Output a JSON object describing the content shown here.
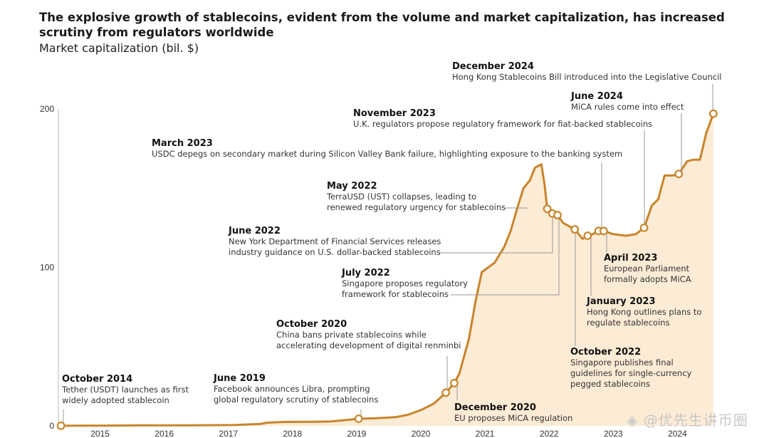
{
  "header": {
    "title": "The explosive growth of stablecoins, evident from the volume and market capitalization, has increased scrutiny from regulators worldwide",
    "subtitle": "Market capitalization (bil. $)"
  },
  "watermark": {
    "icon": "diamond-logo-icon",
    "text": "@优先生讲币圈"
  },
  "colors": {
    "line": "#c8842b",
    "fill": "#fcebd5",
    "marker_fill": "#ffffff",
    "leader": "#999999"
  },
  "chart_data": {
    "type": "area",
    "title": "The explosive growth of stablecoins, evident from the volume and market capitalization, has increased scrutiny from regulators worldwide",
    "ylabel": "Market capitalization (bil. $)",
    "xlabel": "",
    "xlim": [
      2014.75,
      2025.05
    ],
    "ylim": [
      0,
      200
    ],
    "yticks": [
      0,
      100,
      200
    ],
    "xticks": [
      2015,
      2016,
      2017,
      2018,
      2019,
      2020,
      2021,
      2022,
      2023,
      2024
    ],
    "grid": false,
    "series": [
      {
        "values_xy": [
          [
            2014.79,
            0.1
          ],
          [
            2015.5,
            0.2
          ],
          [
            2016.0,
            0.3
          ],
          [
            2016.5,
            0.3
          ],
          [
            2017.0,
            0.4
          ],
          [
            2017.5,
            0.6
          ],
          [
            2017.9,
            1.2
          ],
          [
            2018.0,
            2.0
          ],
          [
            2018.3,
            2.5
          ],
          [
            2018.7,
            2.6
          ],
          [
            2019.0,
            2.8
          ],
          [
            2019.43,
            4.5
          ],
          [
            2019.7,
            4.8
          ],
          [
            2020.0,
            5.5
          ],
          [
            2020.2,
            7.0
          ],
          [
            2020.4,
            10.0
          ],
          [
            2020.6,
            14.0
          ],
          [
            2020.79,
            21.0
          ],
          [
            2020.92,
            27.0
          ],
          [
            2021.0,
            33.0
          ],
          [
            2021.15,
            55.0
          ],
          [
            2021.25,
            78.0
          ],
          [
            2021.35,
            97.0
          ],
          [
            2021.45,
            100.0
          ],
          [
            2021.55,
            103.0
          ],
          [
            2021.7,
            113.0
          ],
          [
            2021.8,
            123.0
          ],
          [
            2021.9,
            137.0
          ],
          [
            2022.0,
            150.0
          ],
          [
            2022.1,
            155.0
          ],
          [
            2022.18,
            163.0
          ],
          [
            2022.28,
            165.0
          ],
          [
            2022.33,
            152.0
          ],
          [
            2022.37,
            137.0
          ],
          [
            2022.45,
            134.0
          ],
          [
            2022.53,
            133.0
          ],
          [
            2022.62,
            128.0
          ],
          [
            2022.8,
            124.0
          ],
          [
            2022.92,
            118.0
          ],
          [
            2023.0,
            120.0
          ],
          [
            2023.08,
            121.0
          ],
          [
            2023.17,
            123.0
          ],
          [
            2023.25,
            123.0
          ],
          [
            2023.4,
            121.0
          ],
          [
            2023.6,
            120.0
          ],
          [
            2023.75,
            121.0
          ],
          [
            2023.88,
            125.0
          ],
          [
            2024.0,
            139.0
          ],
          [
            2024.1,
            143.0
          ],
          [
            2024.2,
            158.0
          ],
          [
            2024.33,
            158.0
          ],
          [
            2024.42,
            159.0
          ],
          [
            2024.55,
            167.0
          ],
          [
            2024.65,
            168.0
          ],
          [
            2024.75,
            168.0
          ],
          [
            2024.85,
            185.0
          ],
          [
            2024.96,
            197.0
          ]
        ]
      }
    ],
    "annotations": [
      {
        "date": "October 2014",
        "lines": [
          "Tether (USDT) launches as first",
          "widely adopted stablecoin"
        ],
        "x": 2014.79,
        "y": 0.1
      },
      {
        "date": "June 2019",
        "lines": [
          "Facebook announces Libra, prompting",
          "global regulatory scrutiny of stablecoins"
        ],
        "x": 2019.43,
        "y": 4.5
      },
      {
        "date": "October 2020",
        "lines": [
          "China bans private stablecoins while",
          "accelerating development of digital renminbi"
        ],
        "x": 2020.79,
        "y": 21.0
      },
      {
        "date": "December 2020",
        "lines": [
          "EU proposes MiCA regulation"
        ],
        "x": 2020.92,
        "y": 27.0
      },
      {
        "date": "May 2022",
        "lines": [
          "TerraUSD (UST) collapses, leading to",
          "renewed regulatory urgency for stablecoins"
        ],
        "x": 2022.37,
        "y": 137.0
      },
      {
        "date": "June 2022",
        "lines": [
          "New York Department of Financial Services releases",
          "industry guidance on U.S. dollar-backed stablecoins"
        ],
        "x": 2022.45,
        "y": 134.0
      },
      {
        "date": "July 2022",
        "lines": [
          "Singapore proposes regulatory",
          "framework for stablecoins"
        ],
        "x": 2022.53,
        "y": 133.0
      },
      {
        "date": "October 2022",
        "lines": [
          "Singapore publishes final",
          "guidelines for single-currency",
          "pegged stablecoins"
        ],
        "x": 2022.8,
        "y": 124.0
      },
      {
        "date": "January 2023",
        "lines": [
          "Hong Kong outlines plans to",
          "regulate stablecoins"
        ],
        "x": 2023.0,
        "y": 120.0
      },
      {
        "date": "March 2023",
        "lines": [
          "USDC depegs on secondary market during Silicon Valley Bank failure, highlighting exposure to the banking system"
        ],
        "x": 2023.17,
        "y": 123.0
      },
      {
        "date": "April 2023",
        "lines": [
          "European Parliament",
          "formally adopts MiCA"
        ],
        "x": 2023.25,
        "y": 123.0
      },
      {
        "date": "November 2023",
        "lines": [
          "U.K. regulators propose regulatory framework for fiat-backed stablecoins"
        ],
        "x": 2023.88,
        "y": 125.0
      },
      {
        "date": "June 2024",
        "lines": [
          "MiCA rules come into effect"
        ],
        "x": 2024.42,
        "y": 159.0
      },
      {
        "date": "December 2024",
        "lines": [
          "Hong Kong Stablecoins Bill introduced into the Legislative Council"
        ],
        "x": 2024.96,
        "y": 197.0
      }
    ]
  }
}
